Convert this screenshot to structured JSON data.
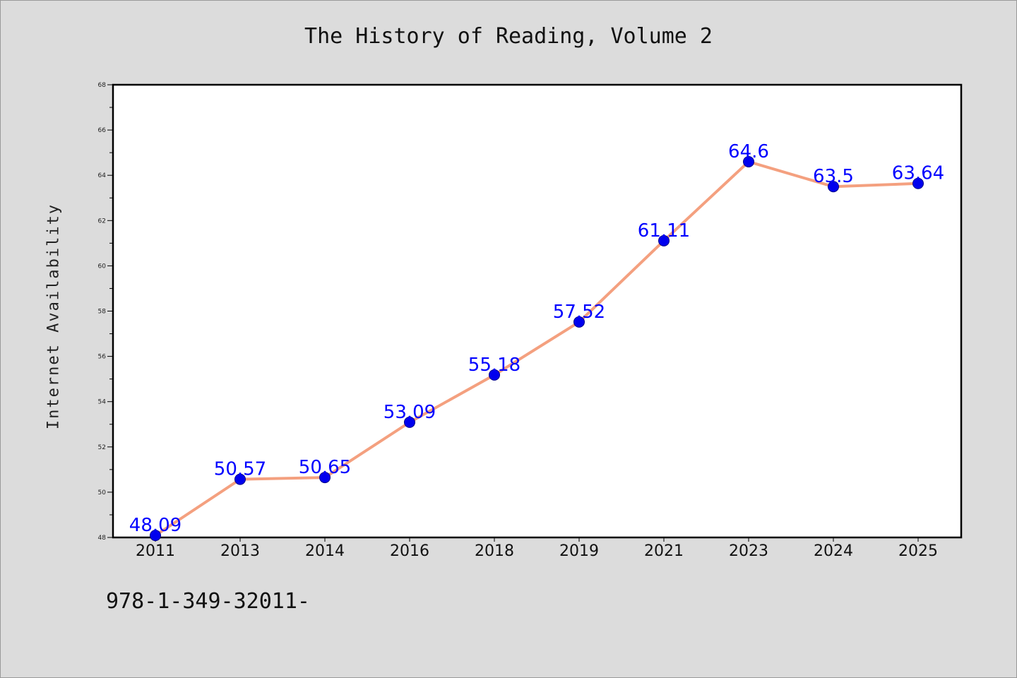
{
  "page": {
    "title": "The History of Reading, Volume 2",
    "isbn_text": "978-1-349-32011-"
  },
  "chart_data": {
    "type": "line",
    "title": "The History of Reading, Volume 2",
    "xlabel": "",
    "ylabel": "Internet Availability",
    "categories": [
      "2011",
      "2013",
      "2014",
      "2016",
      "2018",
      "2019",
      "2021",
      "2023",
      "2024",
      "2025"
    ],
    "series": [
      {
        "values": [
          48.09,
          50.57,
          50.65,
          53.09,
          55.18,
          57.52,
          61.11,
          64.6,
          63.5,
          63.64
        ],
        "labels": [
          "48.09",
          "50.57",
          "50.65",
          "53.09",
          "55.18",
          "57.52",
          "61.11",
          "64.6",
          "63.5",
          "63.64"
        ]
      }
    ],
    "ylim": [
      48,
      68
    ],
    "y_ticks": [
      48,
      50,
      52,
      54,
      56,
      58,
      60,
      62,
      64,
      66,
      68
    ],
    "grid": false,
    "colors": {
      "line": "#f4a07f",
      "marker": "#0000ee",
      "marker_edge": "#00008b",
      "data_label": "#0000ff",
      "plot_bg": "#ffffff",
      "page_bg": "#dcdcdc"
    }
  }
}
